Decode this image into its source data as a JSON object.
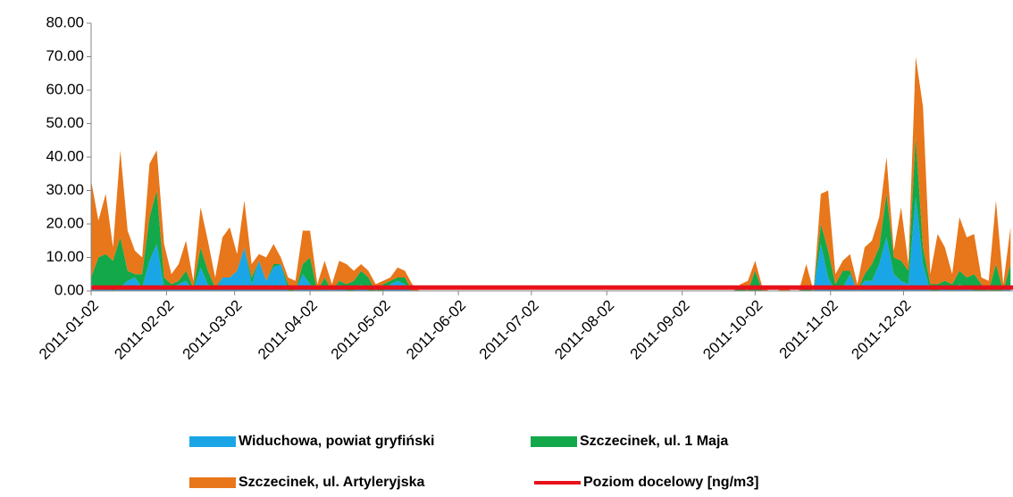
{
  "chart_data": {
    "type": "stacked_area",
    "x": [
      "2011-01-02",
      "2011-01-05",
      "2011-01-08",
      "2011-01-11",
      "2011-01-14",
      "2011-01-17",
      "2011-01-20",
      "2011-01-23",
      "2011-01-26",
      "2011-01-29",
      "2011-02-01",
      "2011-02-04",
      "2011-02-07",
      "2011-02-10",
      "2011-02-13",
      "2011-02-16",
      "2011-02-19",
      "2011-02-22",
      "2011-02-25",
      "2011-02-28",
      "2011-03-03",
      "2011-03-06",
      "2011-03-09",
      "2011-03-12",
      "2011-03-15",
      "2011-03-18",
      "2011-03-21",
      "2011-03-24",
      "2011-03-27",
      "2011-03-30",
      "2011-04-02",
      "2011-04-05",
      "2011-04-08",
      "2011-04-11",
      "2011-04-14",
      "2011-04-17",
      "2011-04-20",
      "2011-04-23",
      "2011-04-26",
      "2011-04-29",
      "2011-05-02",
      "2011-05-05",
      "2011-05-08",
      "2011-05-11",
      "2011-05-14",
      "2011-05-17",
      "2011-05-20",
      "2011-05-23",
      "2011-05-26",
      "2011-05-29",
      "2011-06-01",
      "2011-06-04",
      "2011-06-07",
      "2011-06-10",
      "2011-06-13",
      "2011-06-16",
      "2011-06-19",
      "2011-06-22",
      "2011-06-25",
      "2011-06-28",
      "2011-07-01",
      "2011-07-04",
      "2011-07-07",
      "2011-07-10",
      "2011-07-13",
      "2011-07-16",
      "2011-07-19",
      "2011-07-22",
      "2011-07-25",
      "2011-07-28",
      "2011-07-31",
      "2011-08-03",
      "2011-08-06",
      "2011-08-09",
      "2011-08-12",
      "2011-08-15",
      "2011-08-18",
      "2011-08-21",
      "2011-08-24",
      "2011-08-27",
      "2011-08-30",
      "2011-09-02",
      "2011-09-05",
      "2011-09-08",
      "2011-09-11",
      "2011-09-14",
      "2011-09-17",
      "2011-09-20",
      "2011-09-23",
      "2011-09-26",
      "2011-09-29",
      "2011-10-02",
      "2011-10-05",
      "2011-10-08",
      "2011-10-11",
      "2011-10-14",
      "2011-10-17",
      "2011-10-20",
      "2011-10-23",
      "2011-10-26",
      "2011-10-29",
      "2011-11-01",
      "2011-11-04",
      "2011-11-07",
      "2011-11-10",
      "2011-11-13",
      "2011-11-16",
      "2011-11-19",
      "2011-11-22",
      "2011-11-25",
      "2011-11-28",
      "2011-12-01",
      "2011-12-04",
      "2011-12-07",
      "2011-12-10",
      "2011-12-13",
      "2011-12-16",
      "2011-12-19",
      "2011-12-22",
      "2011-12-25",
      "2011-12-28",
      "2011-12-31",
      "2012-01-03",
      "2012-01-06",
      "2012-01-09",
      "2012-01-12",
      "2012-01-15"
    ],
    "series": [
      {
        "name": "Widuchowa, powiat gryfiński",
        "color": "#1aa6e6",
        "values": [
          2,
          1,
          1,
          0,
          1,
          3,
          4,
          1,
          9,
          14,
          1,
          1,
          2,
          3,
          0,
          7,
          2,
          0,
          4,
          4,
          6,
          13,
          2,
          9,
          3,
          7,
          8,
          0,
          0,
          5,
          2,
          0,
          1,
          0,
          2,
          0,
          0,
          2,
          0,
          0,
          0,
          2,
          3,
          2,
          0,
          0,
          0,
          0,
          0,
          0,
          0,
          0,
          0,
          0,
          0,
          0,
          0,
          0,
          0,
          0,
          0,
          0,
          0,
          0,
          0,
          0,
          0,
          0,
          0,
          0,
          0,
          0,
          0,
          0,
          0,
          0,
          0,
          0,
          0,
          0,
          0,
          0,
          0,
          0,
          0,
          0,
          0,
          0,
          0,
          0,
          0,
          0,
          0,
          0,
          0,
          0,
          0,
          0,
          0,
          0,
          14,
          4,
          0,
          1,
          5,
          0,
          3,
          3,
          8,
          16,
          5,
          3,
          2,
          28,
          8,
          0,
          0,
          1,
          0,
          2,
          1,
          0,
          0,
          0,
          0,
          0,
          2
        ]
      },
      {
        "name": "Szczecinek, ul. 1 Maja",
        "color": "#13a849",
        "values": [
          2,
          9,
          10,
          9,
          15,
          3,
          1,
          4,
          13,
          16,
          3,
          1,
          1,
          3,
          1,
          6,
          4,
          1,
          0,
          0,
          0,
          0,
          2,
          0,
          0,
          1,
          0,
          2,
          0,
          3,
          8,
          0,
          3,
          0,
          1,
          2,
          3,
          4,
          4,
          0,
          2,
          1,
          1,
          2,
          0,
          0,
          0,
          0,
          0,
          0,
          0,
          0,
          0,
          0,
          0,
          0,
          0,
          0,
          0,
          0,
          0,
          0,
          0,
          0,
          0,
          0,
          0,
          0,
          0,
          0,
          0,
          0,
          0,
          0,
          0,
          0,
          0,
          0,
          0,
          0,
          0,
          0,
          0,
          0,
          0,
          0,
          0,
          0,
          0,
          1,
          0,
          6,
          0,
          0,
          0,
          0,
          0,
          0,
          1,
          0,
          6,
          8,
          2,
          5,
          1,
          0,
          2,
          5,
          5,
          13,
          5,
          6,
          4,
          18,
          5,
          2,
          2,
          2,
          2,
          4,
          3,
          5,
          2,
          0,
          8,
          0,
          6
        ]
      },
      {
        "name": "Szczecinek, ul. Artyleryjska",
        "color": "#e8761a",
        "values": [
          29,
          11,
          18,
          4,
          26,
          12,
          7,
          5,
          16,
          12,
          10,
          3,
          5,
          9,
          2,
          12,
          9,
          3,
          12,
          15,
          5,
          14,
          4,
          2,
          7,
          6,
          2,
          2,
          3,
          10,
          8,
          2,
          5,
          2,
          6,
          6,
          3,
          2,
          2,
          2,
          1,
          1,
          3,
          2,
          2,
          0,
          0,
          0,
          0,
          0,
          0,
          0,
          0,
          0,
          0,
          0,
          0,
          0,
          0,
          0,
          0,
          0,
          0,
          0,
          0,
          0,
          0,
          0,
          0,
          0,
          0,
          0,
          0,
          0,
          0,
          0,
          0,
          0,
          0,
          0,
          0,
          0,
          0,
          0,
          0,
          0,
          0,
          0,
          0,
          1,
          3,
          3,
          1,
          0,
          0,
          1,
          0,
          0,
          7,
          0,
          9,
          18,
          3,
          3,
          5,
          2,
          8,
          7,
          9,
          11,
          2,
          16,
          2,
          24,
          42,
          3,
          15,
          10,
          3,
          16,
          12,
          12,
          2,
          3,
          19,
          2,
          11
        ]
      }
    ],
    "target": {
      "name": "Poziom docelowy [ng/m3]",
      "color": "#e8101a",
      "value": 1
    },
    "xlim": [
      "2011-01-02",
      "2012-01-16"
    ],
    "xticks": [
      "2011-01-02",
      "2011-02-02",
      "2011-03-02",
      "2011-04-02",
      "2011-05-02",
      "2011-06-02",
      "2011-07-02",
      "2011-08-02",
      "2011-09-02",
      "2011-10-02",
      "2011-11-02",
      "2011-12-02"
    ],
    "ylim": [
      0,
      80
    ],
    "yticks": [
      {
        "value": 0,
        "label": "0.00"
      },
      {
        "value": 10,
        "label": "10.00"
      },
      {
        "value": 20,
        "label": "20.00"
      },
      {
        "value": 30,
        "label": "30.00"
      },
      {
        "value": 40,
        "label": "40.00"
      },
      {
        "value": 50,
        "label": "50.00"
      },
      {
        "value": 60,
        "label": "60.00"
      },
      {
        "value": 70,
        "label": "70.00"
      },
      {
        "value": 80,
        "label": "80.00"
      }
    ],
    "grid": false,
    "legend": "bottom"
  }
}
